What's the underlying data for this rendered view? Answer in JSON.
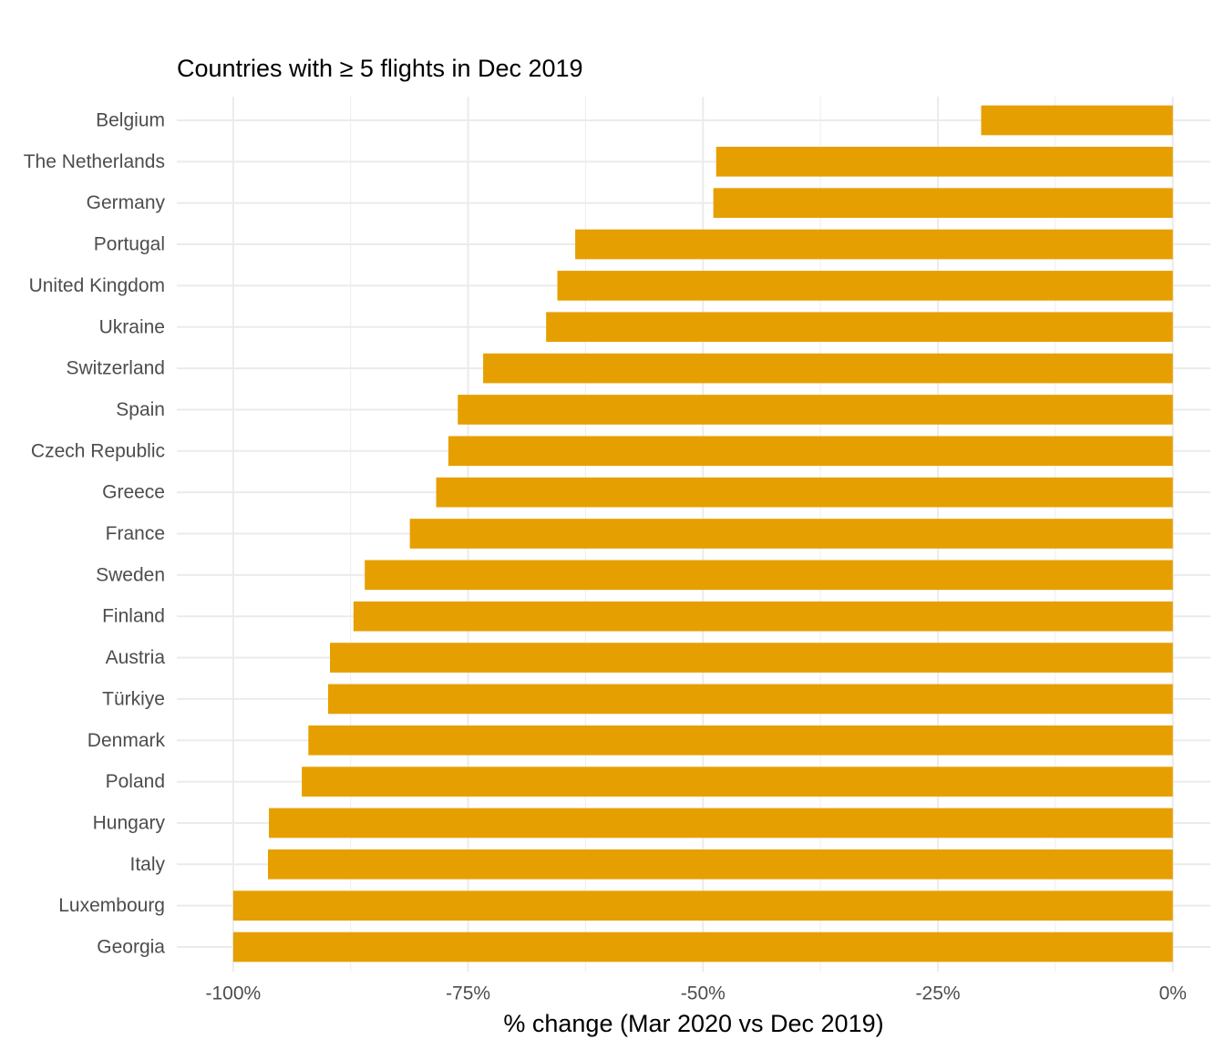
{
  "chart_data": {
    "type": "bar",
    "orientation": "horizontal",
    "title": "Countries with ≥ 5 flights in Dec 2019",
    "xlabel": "% change  (Mar 2020 vs Dec 2019)",
    "ylabel": "",
    "xlim": [
      -106,
      4
    ],
    "x_ticks": [
      -100,
      -75,
      -50,
      -25,
      0
    ],
    "x_tick_labels": [
      "-100%",
      "-75%",
      "-50%",
      "-25%",
      "0%"
    ],
    "grid": true,
    "legend": "none",
    "bar_color": "#E69F00",
    "categories": [
      "Belgium",
      "The Netherlands",
      "Germany",
      "Portugal",
      "United Kingdom",
      "Ukraine",
      "Switzerland",
      "Spain",
      "Czech Republic",
      "Greece",
      "France",
      "Sweden",
      "Finland",
      "Austria",
      "Türkiye",
      "Denmark",
      "Poland",
      "Hungary",
      "Italy",
      "Luxembourg",
      "Georgia"
    ],
    "values": [
      -20.4,
      -48.6,
      -48.9,
      -63.6,
      -65.5,
      -66.7,
      -73.4,
      -76.1,
      -77.1,
      -78.4,
      -81.2,
      -86.0,
      -87.2,
      -89.7,
      -89.9,
      -92.0,
      -92.7,
      -96.2,
      -96.3,
      -100.0,
      -100.0
    ]
  }
}
